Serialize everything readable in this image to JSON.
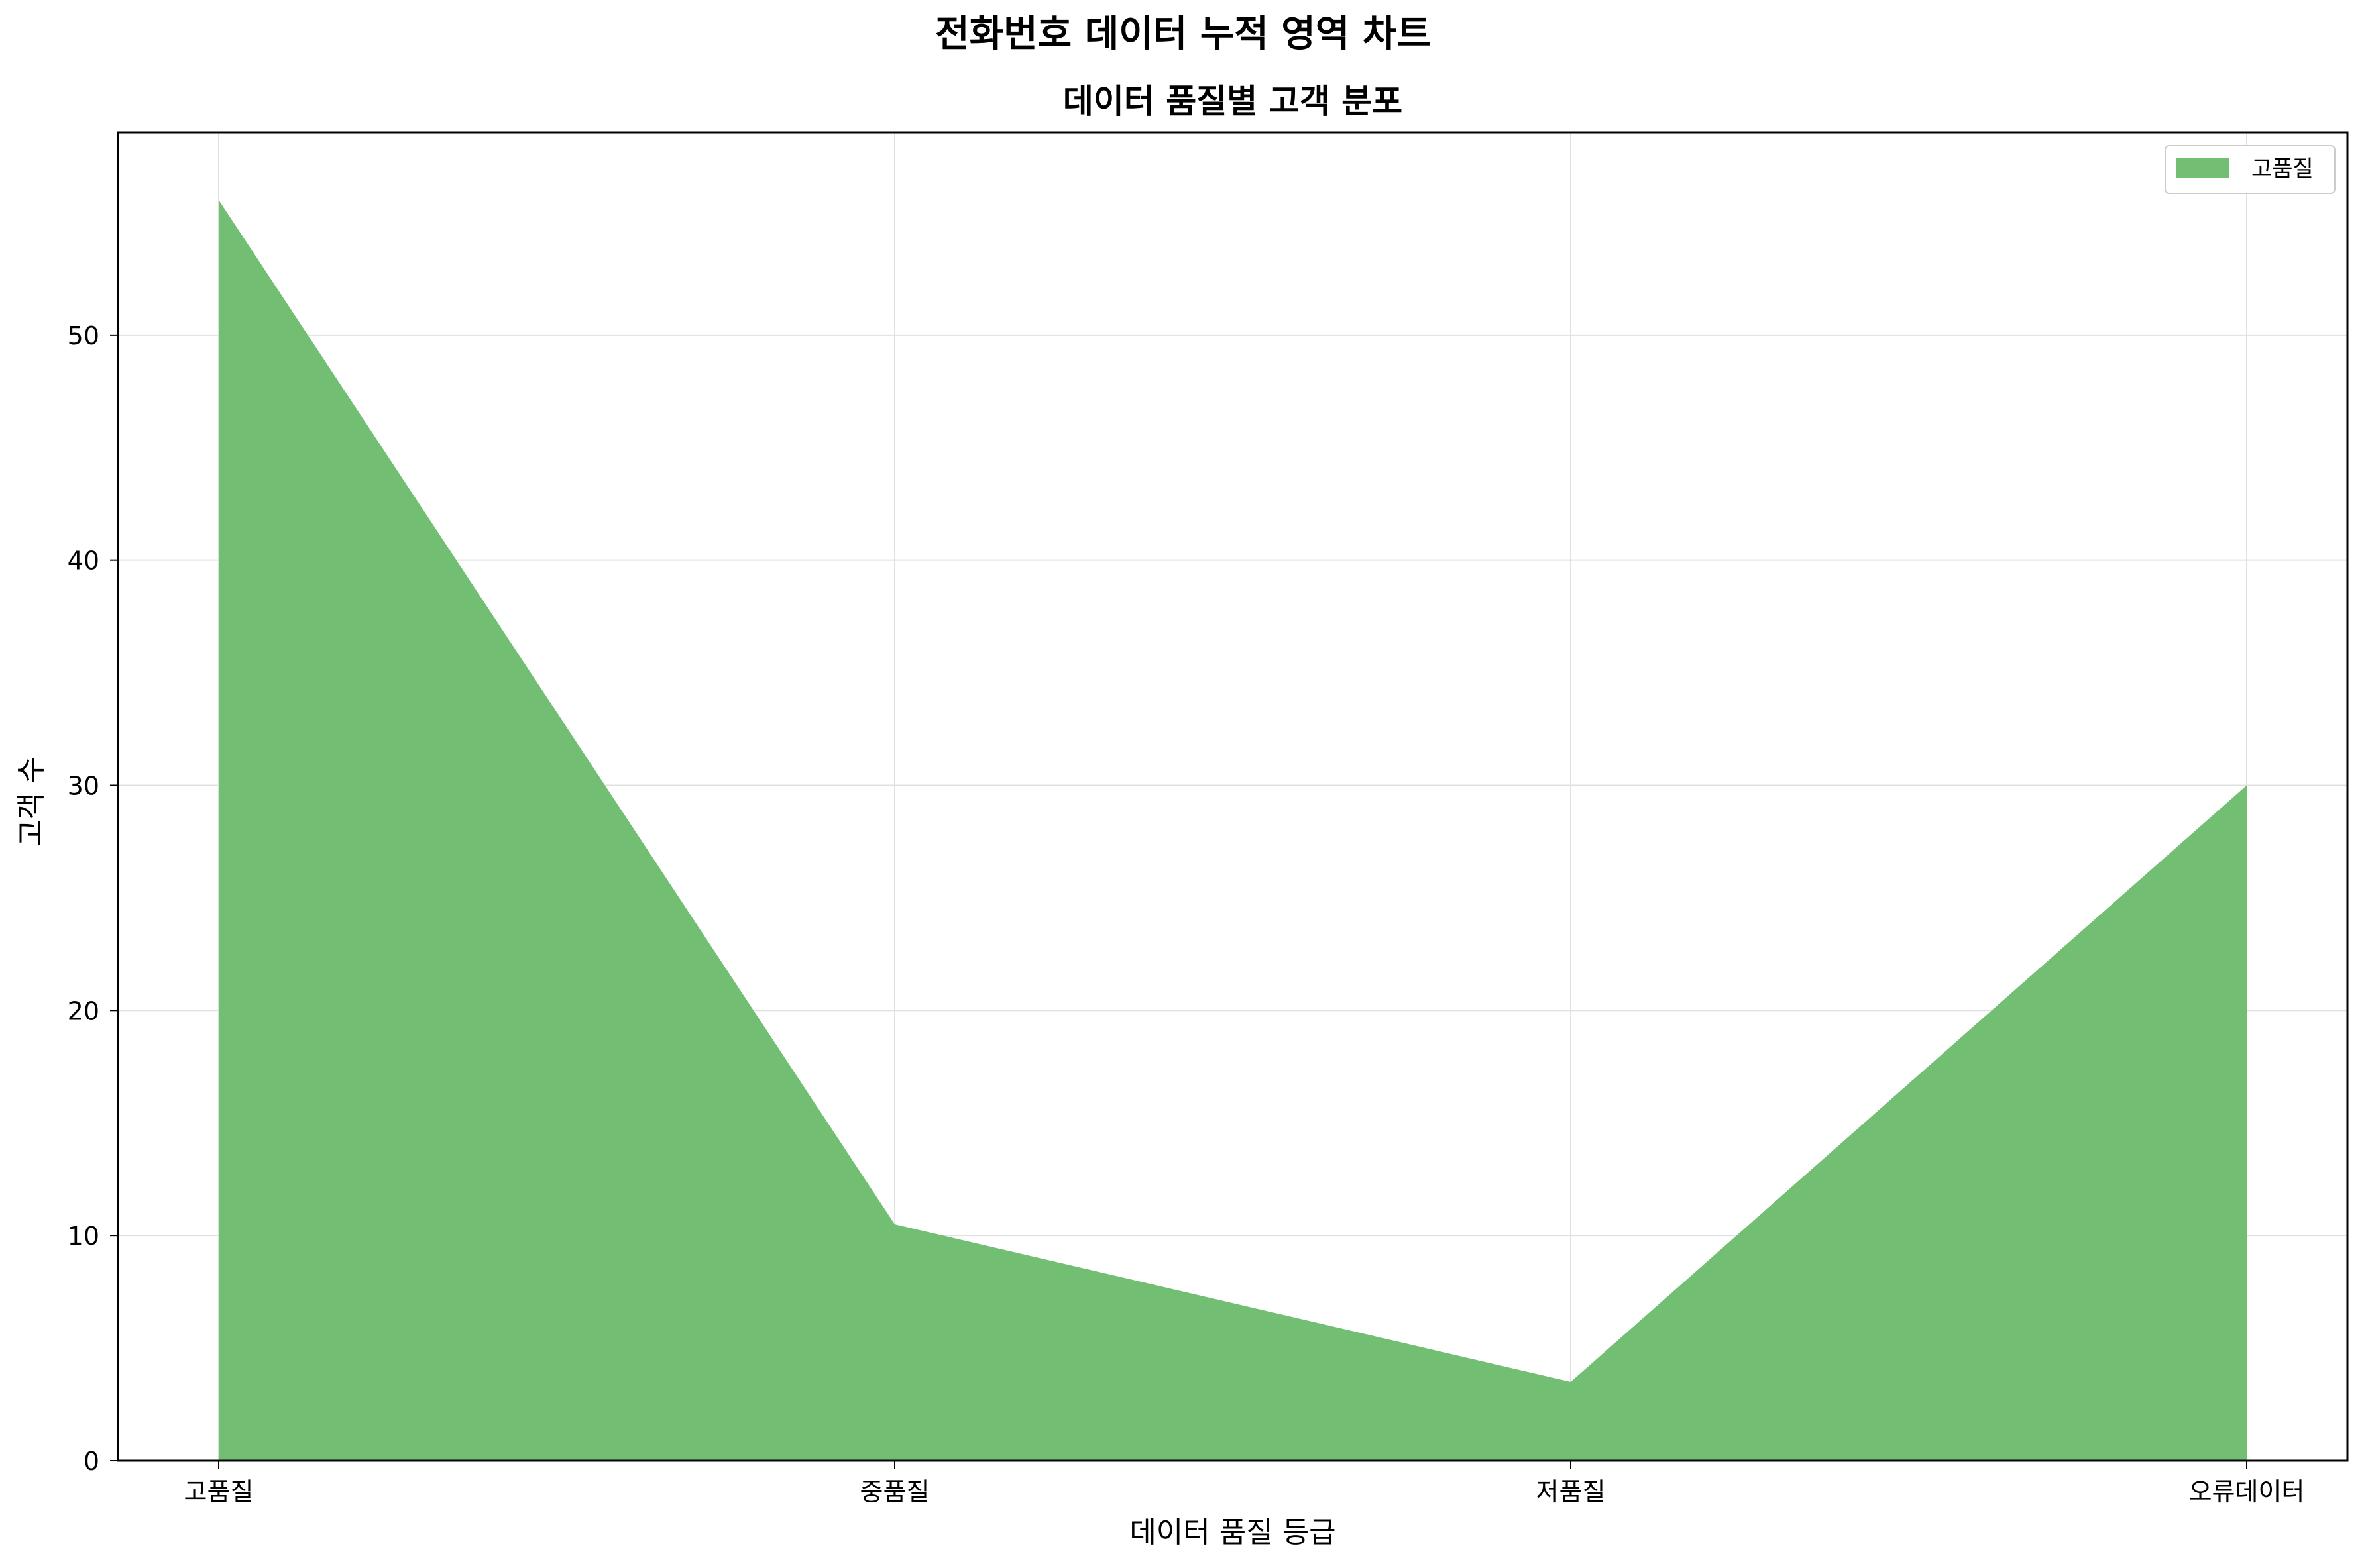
{
  "chart_data": {
    "type": "area",
    "title": "전화번호 데이터 누적 영역 차트",
    "subtitle": "데이터 품질별 고객 분포",
    "xlabel": "데이터 품질 등급",
    "ylabel": "고객 수",
    "categories": [
      "고품질",
      "중품질",
      "저품질",
      "오류데이터"
    ],
    "series": [
      {
        "name": "고품질",
        "values": [
          56,
          10.5,
          3.5,
          30
        ],
        "color": "#72be73"
      }
    ],
    "ylim": [
      0,
      59
    ],
    "yticks": [
      0,
      10,
      20,
      30,
      40,
      50
    ],
    "grid": true,
    "legend_position": "top-right"
  }
}
